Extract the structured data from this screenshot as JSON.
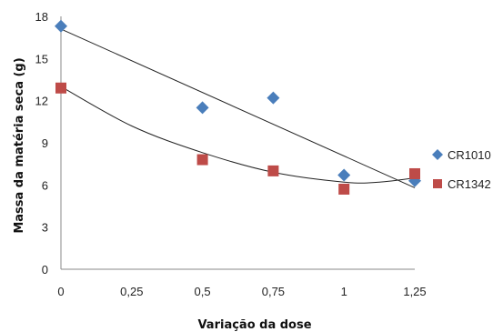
{
  "chart_data": {
    "type": "scatter",
    "xlabel": "Variação da dose",
    "ylabel": "Massa da matéria seca (g)",
    "xlim": [
      0,
      1.25
    ],
    "ylim": [
      0,
      18
    ],
    "x_ticks": [
      "0",
      "0,25",
      "0,5",
      "0,75",
      "1",
      "1,25"
    ],
    "y_ticks": [
      "0",
      "3",
      "6",
      "9",
      "12",
      "15",
      "18"
    ],
    "grid": false,
    "legend_position": "right",
    "series": [
      {
        "name": "CR1010",
        "marker": "diamond",
        "color": "#4A7EBB",
        "x": [
          0,
          0.5,
          0.75,
          1,
          1.25
        ],
        "y": [
          17.3,
          11.5,
          12.2,
          6.7,
          6.3
        ],
        "trendline": "linear",
        "trend_x": [
          0,
          1.25
        ],
        "trend_y": [
          17.1,
          5.8
        ]
      },
      {
        "name": "CR1342",
        "marker": "square",
        "color": "#BE4B48",
        "x": [
          0,
          0.5,
          0.75,
          1,
          1.25
        ],
        "y": [
          12.9,
          7.8,
          7.0,
          5.7,
          6.8
        ],
        "trendline": "polynomial",
        "trend_x": [
          0,
          0.25,
          0.5,
          0.75,
          1,
          1.125,
          1.25
        ],
        "trend_y": [
          13.0,
          10.2,
          8.3,
          6.9,
          6.2,
          6.2,
          6.5
        ]
      }
    ]
  }
}
